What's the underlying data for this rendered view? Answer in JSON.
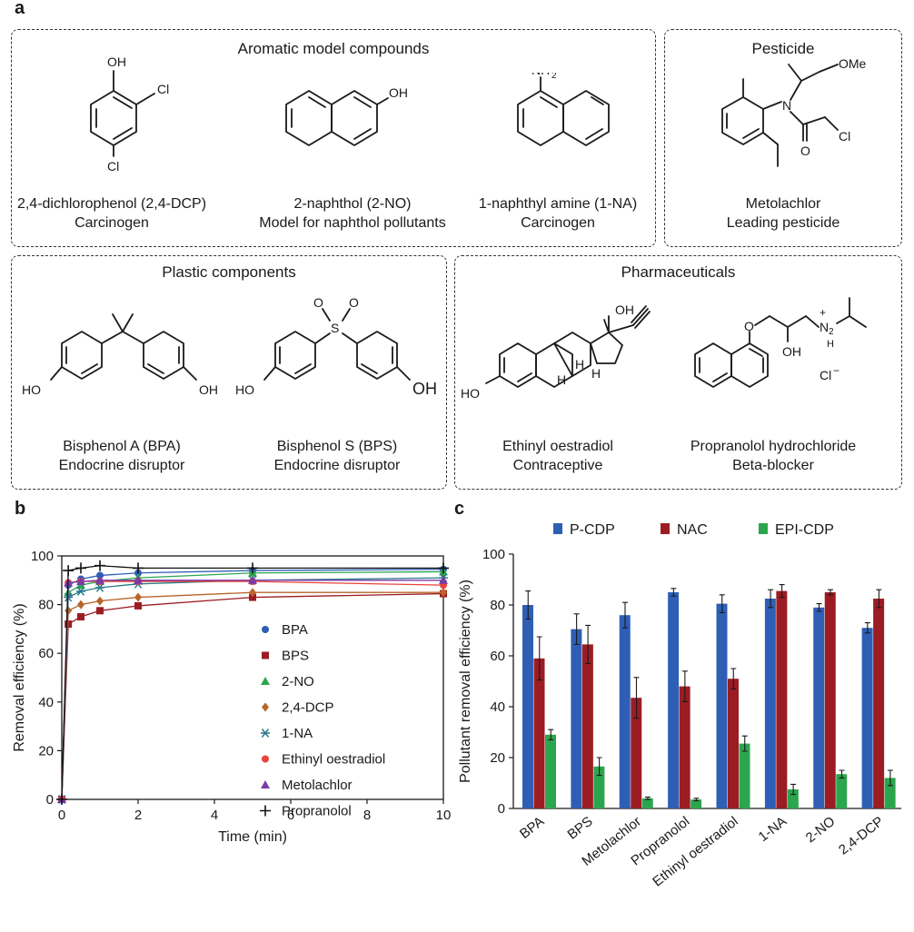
{
  "panels": {
    "a": "a",
    "b": "b",
    "c": "c"
  },
  "sections": {
    "aromatic": "Aromatic model compounds",
    "pesticide": "Pesticide",
    "plastic": "Plastic components",
    "pharma": "Pharmaceuticals"
  },
  "compounds": [
    {
      "name": "2,4-dichlorophenol (2,4-DCP)",
      "role": "Carcinogen"
    },
    {
      "name": "2-naphthol (2-NO)",
      "role": "Model for naphthol pollutants"
    },
    {
      "name": "1-naphthyl amine (1-NA)",
      "role": "Carcinogen"
    },
    {
      "name": "Metolachlor",
      "role": "Leading pesticide"
    },
    {
      "name": "Bisphenol A (BPA)",
      "role": "Endocrine disruptor"
    },
    {
      "name": "Bisphenol S (BPS)",
      "role": "Endocrine disruptor"
    },
    {
      "name": "Ethinyl oestradiol",
      "role": "Contraceptive"
    },
    {
      "name": "Propranolol hydrochloride",
      "role": "Beta-blocker"
    }
  ],
  "atom_labels": {
    "oh": "OH",
    "cl": "Cl",
    "ho": "HO",
    "nh2": "NH",
    "sub2": "2",
    "n": "N",
    "o": "O",
    "ome": "OMe",
    "s": "S",
    "h": "H",
    "plus": "+",
    "minus": "−"
  },
  "colors": {
    "blue": "#2e5fb5",
    "red": "#9c1c24",
    "green": "#2ca64e"
  },
  "chart_data": [
    {
      "type": "line",
      "xlabel": "Time (min)",
      "ylabel": "Removal efficiency (%)",
      "xlim": [
        0,
        10
      ],
      "ylim": [
        0,
        100
      ],
      "xticks": [
        0,
        2,
        4,
        6,
        8,
        10
      ],
      "yticks": [
        0,
        20,
        40,
        60,
        80,
        100
      ],
      "legend": "center-right",
      "series": [
        {
          "name": "BPA",
          "color": "#2e5fb5",
          "marker": "circle",
          "x": [
            0,
            0.17,
            0.5,
            1,
            2,
            5,
            10
          ],
          "y": [
            0,
            88,
            90.5,
            92,
            93,
            94,
            94.5
          ]
        },
        {
          "name": "BPS",
          "color": "#9c1c24",
          "marker": "square",
          "x": [
            0,
            0.17,
            0.5,
            1,
            2,
            5,
            10
          ],
          "y": [
            0,
            72,
            75,
            77.5,
            79.5,
            83,
            84.5
          ]
        },
        {
          "name": "2-NO",
          "color": "#2ca64e",
          "marker": "triangle",
          "x": [
            0,
            0.17,
            0.5,
            1,
            2,
            5,
            10
          ],
          "y": [
            0,
            85,
            88,
            89.5,
            91,
            93,
            93.5
          ]
        },
        {
          "name": "2,4-DCP",
          "color": "#b8642a",
          "marker": "diamond",
          "x": [
            0,
            0.17,
            0.5,
            1,
            2,
            5,
            10
          ],
          "y": [
            0,
            77.5,
            80,
            81.5,
            83,
            85,
            85
          ]
        },
        {
          "name": "1-NA",
          "color": "#2a7a8a",
          "marker": "star",
          "x": [
            0,
            0.17,
            0.5,
            1,
            2,
            5,
            10
          ],
          "y": [
            0,
            83,
            85.5,
            87,
            88.5,
            90,
            91
          ]
        },
        {
          "name": "Ethinyl oestradiol",
          "color": "#e8443a",
          "marker": "circle",
          "x": [
            0,
            0.17,
            0.5,
            1,
            2,
            5,
            10
          ],
          "y": [
            0,
            89,
            89.5,
            89.5,
            89.5,
            89.5,
            88
          ]
        },
        {
          "name": "Metolachlor",
          "color": "#7a3aa8",
          "marker": "triangle",
          "x": [
            0,
            0.17,
            0.5,
            1,
            2,
            5,
            10
          ],
          "y": [
            0,
            89,
            89.5,
            90,
            90,
            90,
            90
          ]
        },
        {
          "name": "Propranolol",
          "color": "#111111",
          "marker": "plus",
          "x": [
            0,
            0.17,
            0.5,
            1,
            2,
            5,
            10
          ],
          "y": [
            0,
            94,
            95,
            96,
            95,
            95,
            95
          ]
        }
      ]
    },
    {
      "type": "bar",
      "ylabel": "Pollutant removal efficiency (%)",
      "ylim": [
        0,
        100
      ],
      "yticks": [
        0,
        20,
        40,
        60,
        80,
        100
      ],
      "legend": "top",
      "categories": [
        "BPA",
        "BPS",
        "Metolachlor",
        "Propranolol",
        "Ethinyl oestradiol",
        "1-NA",
        "2-NO",
        "2,4-DCP"
      ],
      "series": [
        {
          "name": "P-CDP",
          "color": "#2e5fb5",
          "values": [
            80,
            70.5,
            76,
            85,
            80.5,
            82.5,
            79,
            71
          ],
          "errors": [
            5.5,
            6,
            5,
            1.5,
            3.5,
            3.5,
            1.5,
            2
          ]
        },
        {
          "name": "NAC",
          "color": "#9c1c24",
          "values": [
            59,
            64.5,
            43.5,
            48,
            51,
            85.5,
            85,
            82.5
          ],
          "errors": [
            8.5,
            7.5,
            8,
            6,
            4,
            2.5,
            1,
            3.5
          ]
        },
        {
          "name": "EPI-CDP",
          "color": "#2ca64e",
          "values": [
            29,
            16.5,
            4,
            3.5,
            25.5,
            7.5,
            13.5,
            12
          ],
          "errors": [
            2,
            3.5,
            0.5,
            0.5,
            3,
            2,
            1.5,
            3
          ]
        }
      ]
    }
  ]
}
